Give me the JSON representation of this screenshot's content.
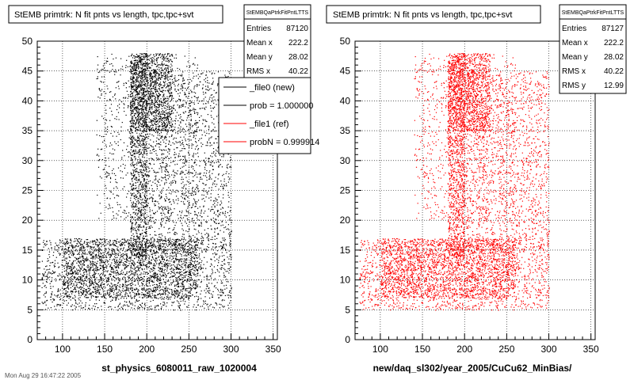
{
  "footer_text": "Mon Aug 29 16:47:22 2005",
  "legend": {
    "entries": [
      {
        "label": "_file0 (new)",
        "color": "#000000"
      },
      {
        "label": "prob = 1.000000",
        "color": "#000000"
      },
      {
        "label": "_file1 (ref)",
        "color": "#ff0000"
      },
      {
        "label": "probN = 0.999914",
        "color": "#ff0000"
      }
    ]
  },
  "chart_data": [
    {
      "type": "scatter",
      "title": "StEMB primtrk: N fit pnts vs length, tpc,tpc+svt",
      "xlabel": "st_physics_6080011_raw_1020004",
      "ylabel": "",
      "xlim": [
        70,
        355
      ],
      "ylim": [
        0,
        50
      ],
      "xticks": [
        100,
        150,
        200,
        250,
        300,
        350
      ],
      "yticks": [
        0,
        5,
        10,
        15,
        20,
        25,
        30,
        35,
        40,
        45,
        50
      ],
      "grid": true,
      "color": "#000000",
      "stats": {
        "header": "StEMBQaPtrkFitPntLTTS",
        "rows": [
          {
            "label": "Entries",
            "value": "87120"
          },
          {
            "label": "Mean x",
            "value": "222.2"
          },
          {
            "label": "Mean y",
            "value": "28.02"
          },
          {
            "label": "RMS x",
            "value": "40.22"
          }
        ]
      },
      "regions": [
        {
          "x": [
            180,
            230
          ],
          "y": [
            35,
            48
          ],
          "density": 1.0
        },
        {
          "x": [
            180,
            200
          ],
          "y": [
            14,
            48
          ],
          "density": 0.9
        },
        {
          "x": [
            100,
            260
          ],
          "y": [
            7,
            17
          ],
          "density": 0.75
        },
        {
          "x": [
            195,
            300
          ],
          "y": [
            15,
            45
          ],
          "density": 0.3
        },
        {
          "x": [
            75,
            300
          ],
          "y": [
            5,
            17
          ],
          "density": 0.35
        },
        {
          "x": [
            140,
            260
          ],
          "y": [
            20,
            48
          ],
          "density": 0.15
        }
      ]
    },
    {
      "type": "scatter",
      "title": "StEMB primtrk: N fit pnts vs length, tpc,tpc+svt",
      "xlabel": "new/daq_sl302/year_2005/CuCu62_MinBias/",
      "ylabel": "",
      "xlim": [
        70,
        355
      ],
      "ylim": [
        0,
        50
      ],
      "xticks": [
        100,
        150,
        200,
        250,
        300,
        350
      ],
      "yticks": [
        0,
        5,
        10,
        15,
        20,
        25,
        30,
        35,
        40,
        45,
        50
      ],
      "grid": true,
      "color": "#ff0000",
      "stats": {
        "header": "StEMBQaPtrkFitPntLTTS",
        "rows": [
          {
            "label": "Entries",
            "value": "87127"
          },
          {
            "label": "Mean x",
            "value": "222.2"
          },
          {
            "label": "Mean y",
            "value": "28.02"
          },
          {
            "label": "RMS x",
            "value": "40.22"
          },
          {
            "label": "RMS y",
            "value": "12.99"
          }
        ]
      },
      "regions": [
        {
          "x": [
            180,
            230
          ],
          "y": [
            35,
            48
          ],
          "density": 1.0
        },
        {
          "x": [
            180,
            200
          ],
          "y": [
            14,
            48
          ],
          "density": 0.9
        },
        {
          "x": [
            100,
            260
          ],
          "y": [
            7,
            17
          ],
          "density": 0.75
        },
        {
          "x": [
            195,
            300
          ],
          "y": [
            15,
            45
          ],
          "density": 0.3
        },
        {
          "x": [
            75,
            300
          ],
          "y": [
            5,
            17
          ],
          "density": 0.35
        },
        {
          "x": [
            140,
            260
          ],
          "y": [
            20,
            48
          ],
          "density": 0.15
        }
      ]
    }
  ]
}
